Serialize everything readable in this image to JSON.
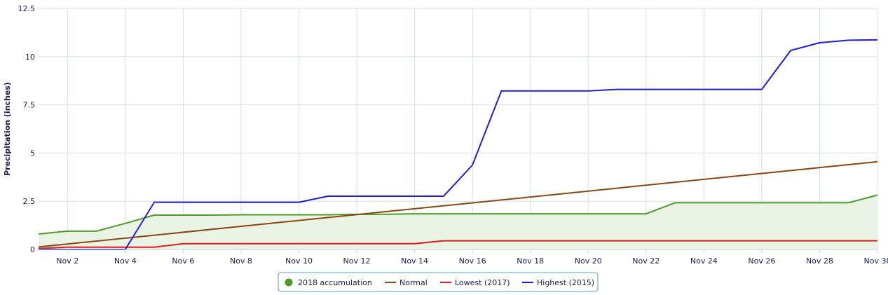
{
  "chart_data": {
    "type": "line",
    "ylabel": "Precipitation (inches)",
    "ylim": [
      0,
      12.5
    ],
    "y_ticks": [
      "0",
      "2.5",
      "5",
      "7.5",
      "10",
      "12.5"
    ],
    "x_range": [
      1,
      30
    ],
    "x_ticks": [
      {
        "day": 2,
        "label": "Nov 2"
      },
      {
        "day": 4,
        "label": "Nov 4"
      },
      {
        "day": 6,
        "label": "Nov 6"
      },
      {
        "day": 8,
        "label": "Nov 8"
      },
      {
        "day": 10,
        "label": "Nov 10"
      },
      {
        "day": 12,
        "label": "Nov 12"
      },
      {
        "day": 14,
        "label": "Nov 14"
      },
      {
        "day": 16,
        "label": "Nov 16"
      },
      {
        "day": 18,
        "label": "Nov 18"
      },
      {
        "day": 20,
        "label": "Nov 20"
      },
      {
        "day": 22,
        "label": "Nov 22"
      },
      {
        "day": 24,
        "label": "Nov 24"
      },
      {
        "day": 26,
        "label": "Nov 26"
      },
      {
        "day": 28,
        "label": "Nov 28"
      },
      {
        "day": 30,
        "label": "Nov 30"
      }
    ],
    "grid": true,
    "legend_position": "bottom-center",
    "series": [
      {
        "name": "2018 accumulation",
        "style": "area",
        "color": "#4e9a2a",
        "fill": "#eaf4e4",
        "x": [
          1,
          2,
          3,
          4,
          5,
          6,
          7,
          8,
          9,
          10,
          11,
          12,
          13,
          14,
          15,
          16,
          17,
          18,
          19,
          20,
          21,
          22,
          23,
          24,
          25,
          26,
          27,
          28,
          29,
          30
        ],
        "values": [
          0.8,
          0.95,
          0.95,
          1.35,
          1.78,
          1.78,
          1.78,
          1.8,
          1.8,
          1.8,
          1.8,
          1.82,
          1.82,
          1.85,
          1.85,
          1.85,
          1.85,
          1.85,
          1.85,
          1.85,
          1.85,
          1.85,
          2.42,
          2.42,
          2.42,
          2.42,
          2.42,
          2.42,
          2.42,
          2.82
        ]
      },
      {
        "name": "Normal",
        "style": "line",
        "color": "#8b4513",
        "x": [
          1,
          30
        ],
        "values": [
          0.13,
          4.55
        ]
      },
      {
        "name": "Lowest (2017)",
        "style": "line",
        "color": "#e01b1b",
        "x": [
          1,
          2,
          3,
          4,
          5,
          6,
          7,
          8,
          9,
          10,
          11,
          12,
          13,
          14,
          15,
          16,
          17,
          18,
          19,
          20,
          21,
          22,
          23,
          24,
          25,
          26,
          27,
          28,
          29,
          30
        ],
        "values": [
          0.05,
          0.12,
          0.12,
          0.12,
          0.12,
          0.3,
          0.3,
          0.3,
          0.3,
          0.3,
          0.3,
          0.3,
          0.3,
          0.3,
          0.45,
          0.45,
          0.45,
          0.45,
          0.45,
          0.45,
          0.45,
          0.45,
          0.45,
          0.45,
          0.45,
          0.45,
          0.45,
          0.45,
          0.45,
          0.45
        ]
      },
      {
        "name": "Highest (2015)",
        "style": "line",
        "color": "#1f1fcf",
        "x": [
          1,
          2,
          3,
          4,
          5,
          6,
          7,
          8,
          9,
          10,
          11,
          12,
          13,
          14,
          15,
          16,
          17,
          18,
          19,
          20,
          21,
          22,
          23,
          24,
          25,
          26,
          27,
          28,
          29,
          30
        ],
        "values": [
          0.0,
          0.0,
          0.0,
          0.0,
          2.45,
          2.45,
          2.45,
          2.45,
          2.45,
          2.45,
          2.76,
          2.76,
          2.76,
          2.76,
          2.76,
          4.38,
          8.22,
          8.22,
          8.22,
          8.22,
          8.3,
          8.3,
          8.3,
          8.3,
          8.3,
          8.3,
          10.32,
          10.72,
          10.85,
          10.87
        ]
      }
    ]
  }
}
